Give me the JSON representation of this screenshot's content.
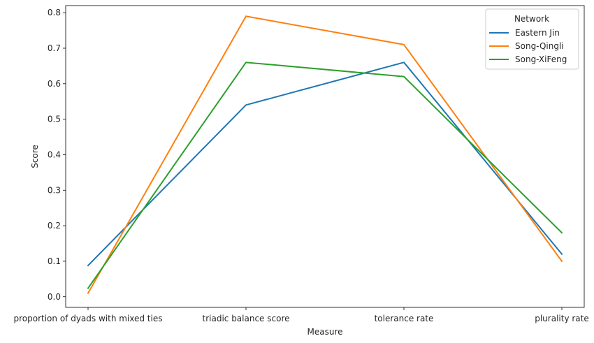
{
  "chart_data": {
    "type": "line",
    "xlabel": "Measure",
    "ylabel": "Score",
    "categories": [
      "proportion of dyads with mixed ties",
      "triadic balance score",
      "tolerance rate",
      "plurality rate"
    ],
    "ylim": [
      -0.03,
      0.82
    ],
    "yticks": [
      0.0,
      0.1,
      0.2,
      0.3,
      0.4,
      0.5,
      0.6,
      0.7,
      0.8
    ],
    "ytick_labels": [
      "0.0",
      "0.1",
      "0.2",
      "0.3",
      "0.4",
      "0.5",
      "0.6",
      "0.7",
      "0.8"
    ],
    "grid": false,
    "legend": {
      "title": "Network",
      "position": "top-right"
    },
    "series": [
      {
        "name": "Eastern Jin",
        "color": "#1f77b4",
        "values": [
          0.088,
          0.54,
          0.66,
          0.12
        ]
      },
      {
        "name": "Song-Qingli",
        "color": "#ff7f0e",
        "values": [
          0.01,
          0.79,
          0.71,
          0.1
        ]
      },
      {
        "name": "Song-XiFeng",
        "color": "#2ca02c",
        "values": [
          0.024,
          0.66,
          0.62,
          0.18
        ]
      }
    ]
  }
}
